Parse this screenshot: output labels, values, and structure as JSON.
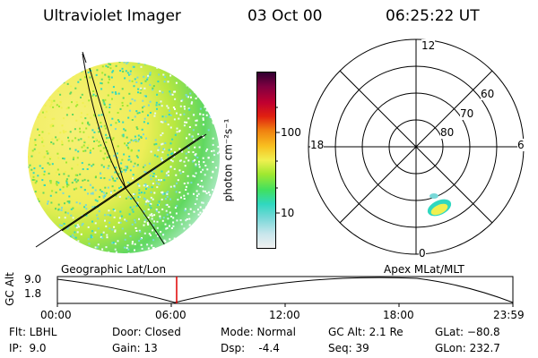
{
  "header": {
    "title": "Ultraviolet Imager",
    "date": "03 Oct 00",
    "time": "06:25:22 UT"
  },
  "colorbar": {
    "label": "photon cm⁻²s⁻¹",
    "ticks": [
      "100",
      "10"
    ]
  },
  "left_panel": {
    "caption": "Geographic Lat/Lon"
  },
  "right_panel": {
    "caption": "Apex MLat/MLT",
    "mlt_labels": {
      "top": "12",
      "left": "18",
      "right": "6",
      "bottom": "0"
    },
    "lat_labels": [
      "60",
      "70",
      "80"
    ]
  },
  "timeline": {
    "ylabel": "GC Alt",
    "yticks": [
      "9.0",
      "1.8"
    ],
    "xticks": [
      "00:00",
      "06:00",
      "12:00",
      "18:00",
      "23:59"
    ],
    "marker_time": "06:25"
  },
  "info": {
    "flt": "Flt: LBHL",
    "ip": "IP:  9.0",
    "door": "Door: Closed",
    "gain": "Gain: 13",
    "mode": "Mode: Normal",
    "dsp": "Dsp:    -4.4",
    "gcalt": "GC Alt: 2.1 Re",
    "seq": "Seq: 39",
    "glat": "GLat: −80.8",
    "glon": "GLon: 232.7"
  },
  "colors": {
    "colorbar": [
      "#f0f0f0",
      "#c8e6ec",
      "#78d8d8",
      "#30d8c0",
      "#40e060",
      "#a0e830",
      "#f0f050",
      "#f8c020",
      "#f08010",
      "#e02010",
      "#c00030",
      "#800040",
      "#300030"
    ],
    "marker": "#e00000"
  }
}
